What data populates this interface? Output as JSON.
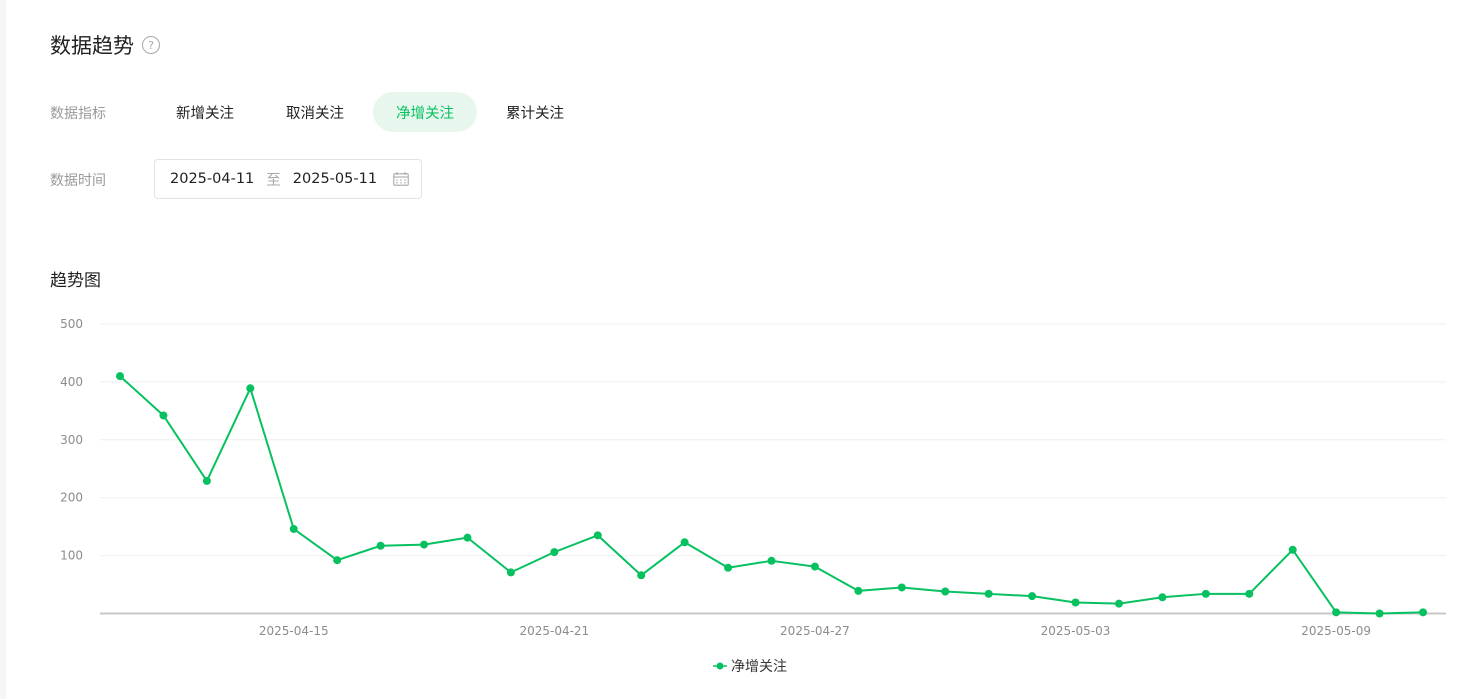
{
  "header": {
    "title": "数据趋势",
    "help_icon": "?"
  },
  "metric_row": {
    "label": "数据指标",
    "tabs": [
      {
        "label": "新增关注"
      },
      {
        "label": "取消关注"
      },
      {
        "label": "净增关注",
        "active": true
      },
      {
        "label": "累计关注"
      }
    ]
  },
  "date_row": {
    "label": "数据时间",
    "start": "2025-04-11",
    "separator": "至",
    "end": "2025-05-11",
    "icon": "calendar-icon"
  },
  "trend": {
    "title": "趋势图"
  },
  "colors": {
    "accent": "#07c160",
    "active_tab_bg": "#e8f7ee"
  },
  "chart_data": {
    "type": "line",
    "title": "趋势图",
    "y_ticks": [
      100,
      200,
      300,
      400,
      500
    ],
    "ylim": [
      0,
      500
    ],
    "x_tick_labels": [
      "2025-04-15",
      "2025-04-21",
      "2025-04-27",
      "2025-05-03",
      "2025-05-09"
    ],
    "x_tick_indices": [
      4,
      10,
      16,
      22,
      28
    ],
    "grid": true,
    "legend_position": "bottom-center",
    "series": [
      {
        "name": "净增关注",
        "color": "#07c160",
        "x": [
          "2025-04-11",
          "2025-04-12",
          "2025-04-13",
          "2025-04-14",
          "2025-04-15",
          "2025-04-16",
          "2025-04-17",
          "2025-04-18",
          "2025-04-19",
          "2025-04-20",
          "2025-04-21",
          "2025-04-22",
          "2025-04-23",
          "2025-04-24",
          "2025-04-25",
          "2025-04-26",
          "2025-04-27",
          "2025-04-28",
          "2025-04-29",
          "2025-04-30",
          "2025-05-01",
          "2025-05-02",
          "2025-05-03",
          "2025-05-04",
          "2025-05-05",
          "2025-05-06",
          "2025-05-07",
          "2025-05-08",
          "2025-05-09",
          "2025-05-10",
          "2025-05-11"
        ],
        "values": [
          410,
          342,
          229,
          389,
          146,
          92,
          117,
          119,
          131,
          71,
          106,
          135,
          66,
          123,
          79,
          91,
          81,
          39,
          45,
          38,
          34,
          30,
          19,
          17,
          28,
          34,
          34,
          110,
          2,
          0,
          2
        ]
      }
    ]
  }
}
